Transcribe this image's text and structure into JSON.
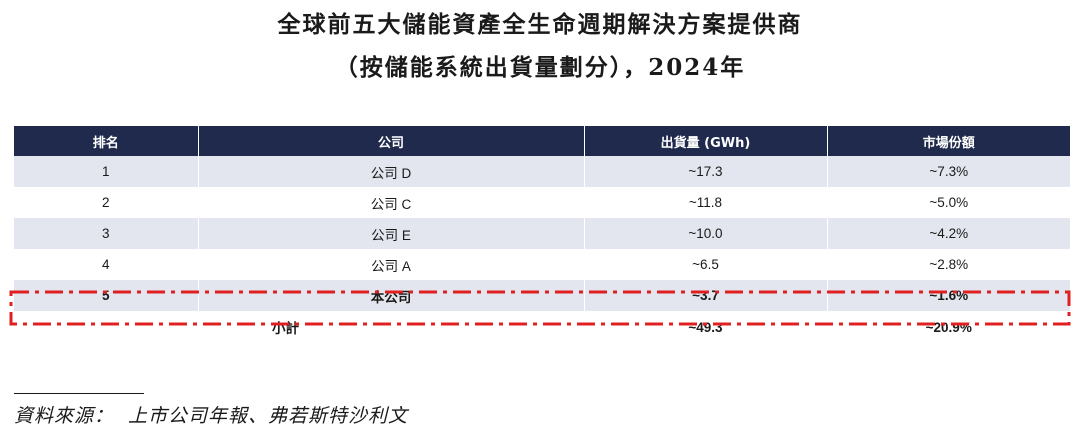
{
  "title": {
    "line1": "全球前五大儲能資產全生命週期解決方案提供商",
    "line2": "（按儲能系統出貨量劃分），2024年"
  },
  "table": {
    "headers": [
      "排名",
      "公司",
      "出貨量 (GWh)",
      "市場份額"
    ],
    "rows": [
      {
        "rank": "1",
        "company": "公司 D",
        "shipment": "~17.3",
        "share": "~7.3%"
      },
      {
        "rank": "2",
        "company": "公司 C",
        "shipment": "~11.8",
        "share": "~5.0%"
      },
      {
        "rank": "3",
        "company": "公司 E",
        "shipment": "~10.0",
        "share": "~4.2%"
      },
      {
        "rank": "4",
        "company": "公司 A",
        "shipment": "~6.5",
        "share": "~2.8%"
      },
      {
        "rank": "5",
        "company": "本公司",
        "shipment": "~3.7",
        "share": "~1.6%"
      }
    ],
    "subtotal": {
      "label": "小計",
      "shipment": "~49.3",
      "share": "~20.9%"
    }
  },
  "source": {
    "label": "資料來源：",
    "text": "上市公司年報、弗若斯特沙利文"
  },
  "colors": {
    "header_bg": "#1f2a4d",
    "row_shade": "#e3e6ee",
    "highlight_border": "#e02020"
  }
}
